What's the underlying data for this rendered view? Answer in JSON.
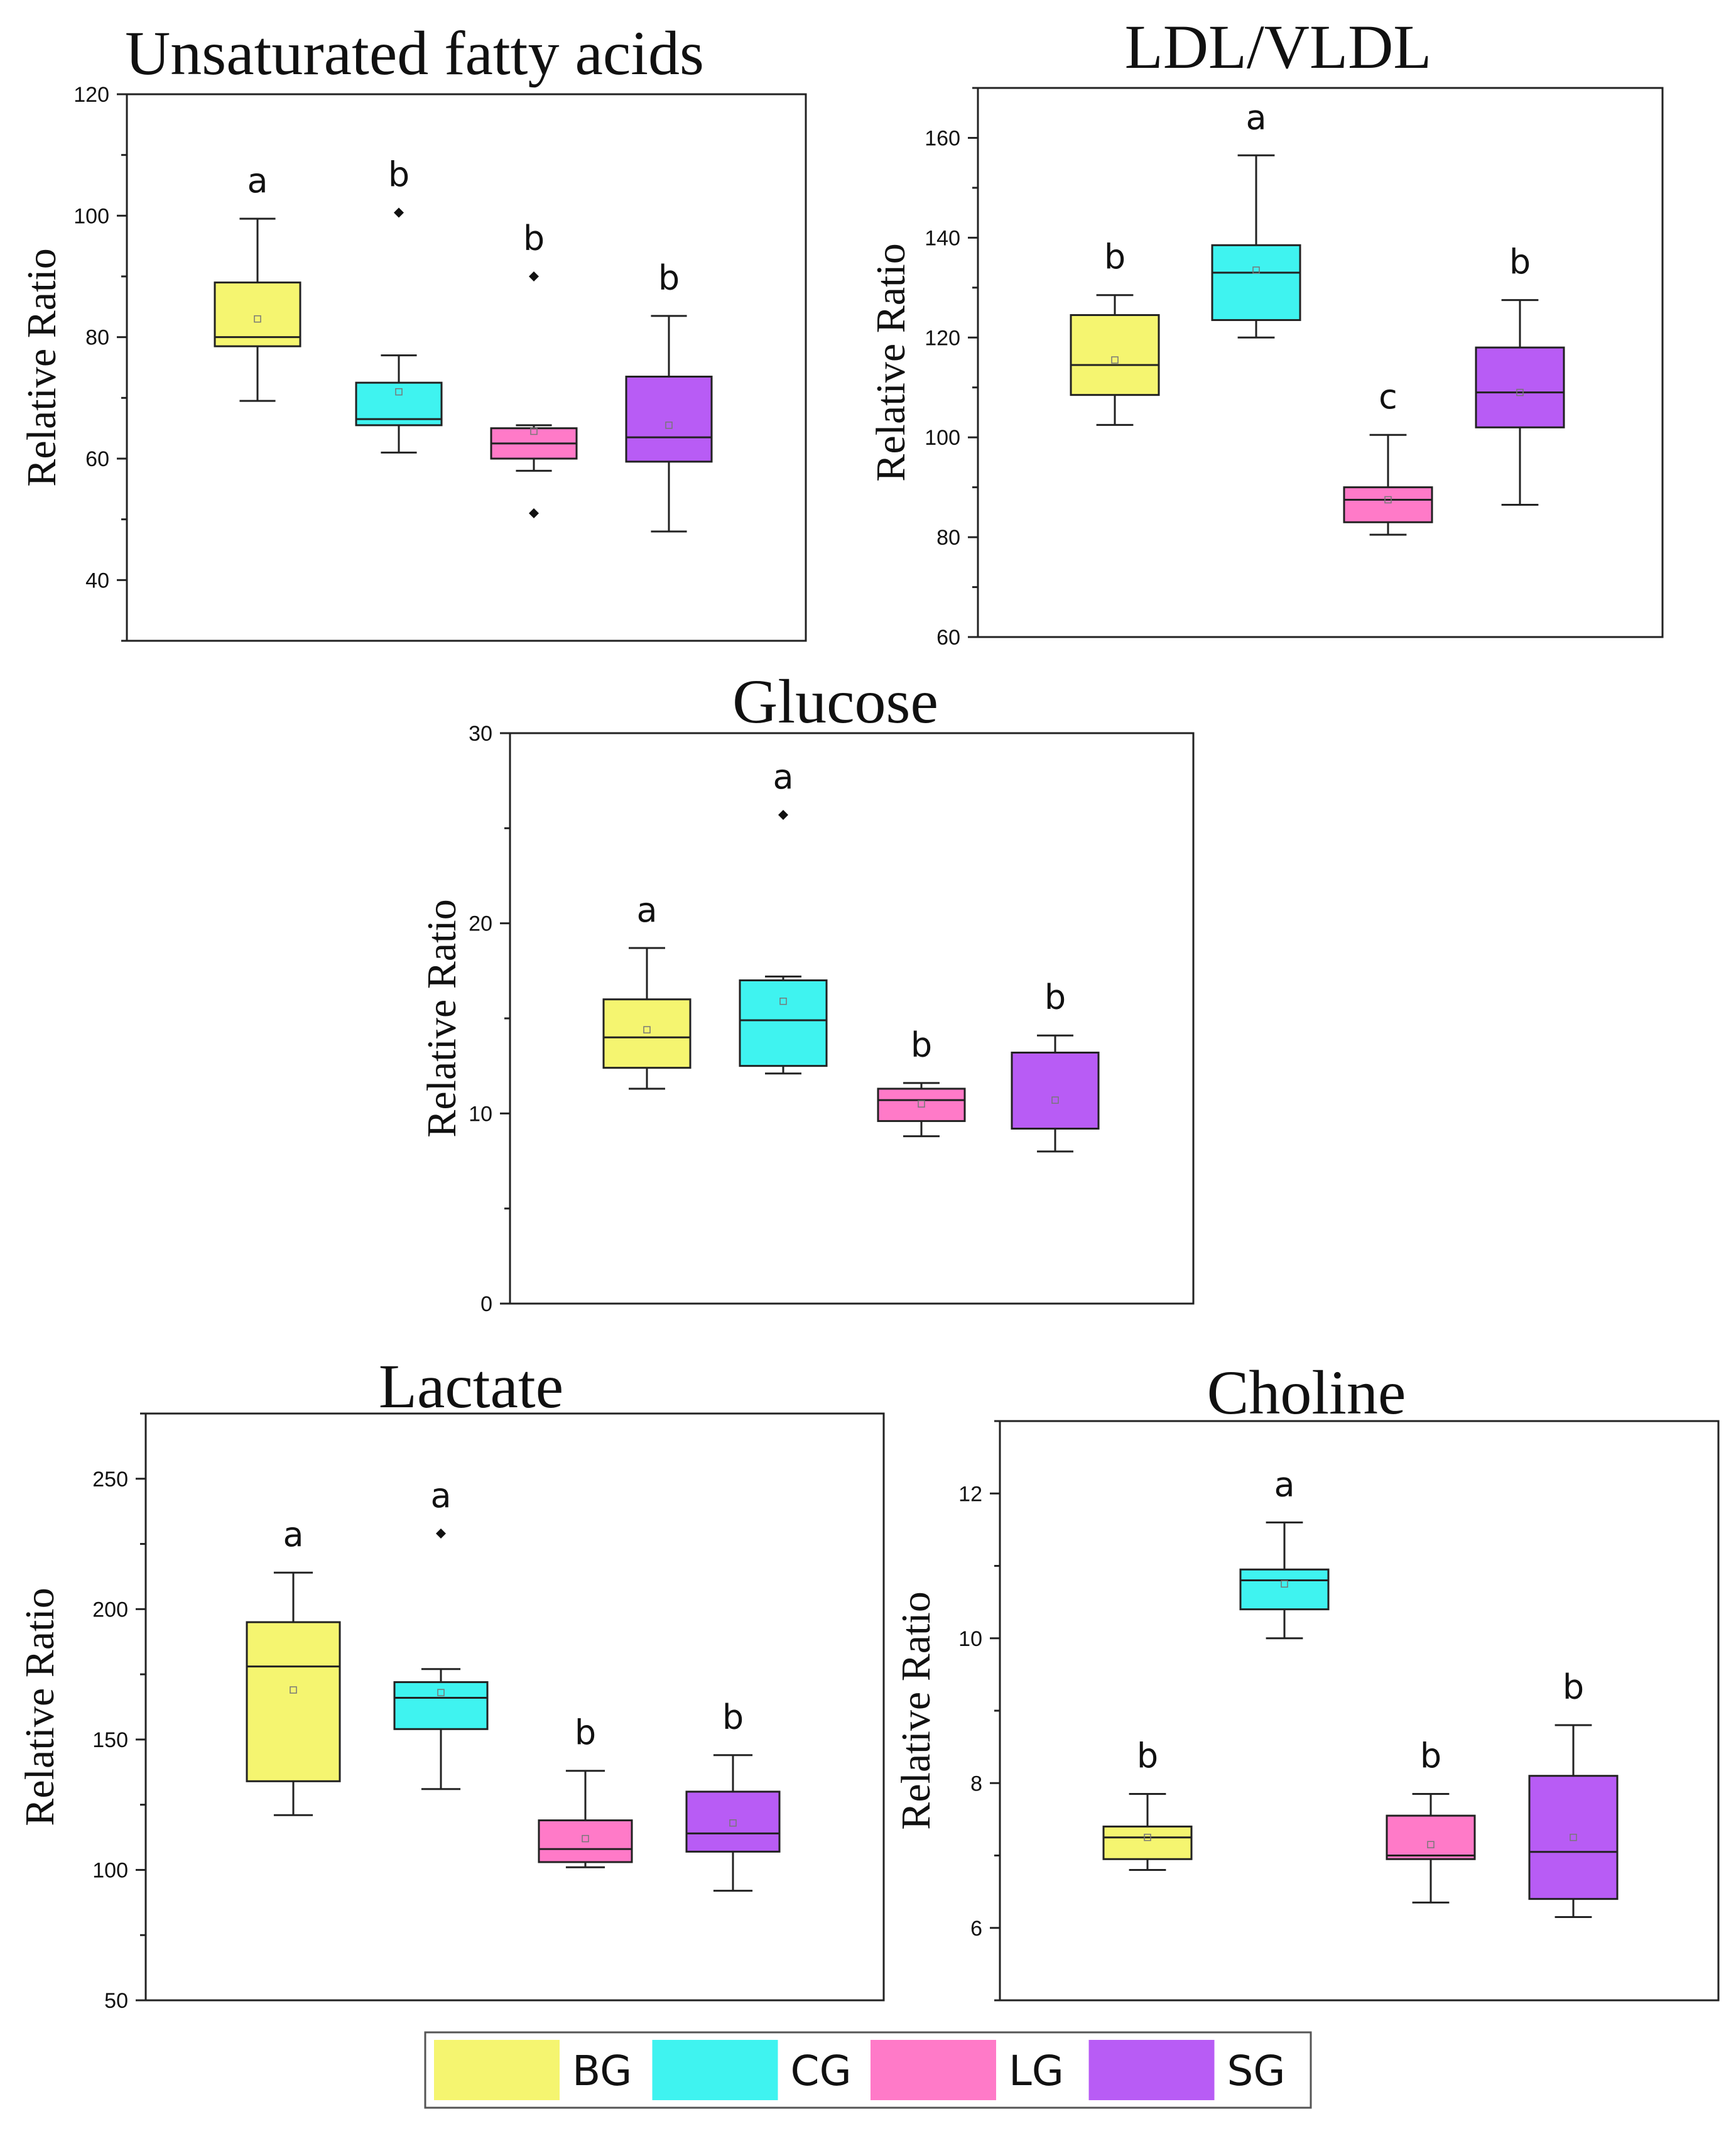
{
  "colors": {
    "BG": "#f5f570",
    "CG": "#3ff3f0",
    "LG": "#ff7ac8",
    "SG": "#b85cf5"
  },
  "legend": [
    "BG",
    "CG",
    "LG",
    "SG"
  ],
  "chart_data": [
    {
      "type": "box",
      "title": "Unsaturated fatty acids",
      "ylabel": "Relative Ratio",
      "ylim": [
        30,
        120
      ],
      "yticks": [
        40,
        60,
        80,
        100,
        120
      ],
      "groups": [
        "BG",
        "CG",
        "LG",
        "SG"
      ],
      "boxes": [
        {
          "group": "BG",
          "whisker_low": 69.5,
          "q1": 78.5,
          "median": 80,
          "q3": 89,
          "whisker_high": 99.5,
          "mean": 83,
          "outliers": [],
          "letter": "a"
        },
        {
          "group": "CG",
          "whisker_low": 61,
          "q1": 65.5,
          "median": 66.5,
          "q3": 72.5,
          "whisker_high": 77,
          "mean": 71,
          "outliers": [
            100.5
          ],
          "letter": "b"
        },
        {
          "group": "LG",
          "whisker_low": 58,
          "q1": 60,
          "median": 62.5,
          "q3": 65,
          "whisker_high": 65.5,
          "mean": 64.5,
          "outliers": [
            90,
            51
          ],
          "letter": "b"
        },
        {
          "group": "SG",
          "whisker_low": 48,
          "q1": 59.5,
          "median": 63.5,
          "q3": 73.5,
          "whisker_high": 83.5,
          "mean": 65.5,
          "outliers": [],
          "letter": "b"
        }
      ]
    },
    {
      "type": "box",
      "title": "LDL/VLDL",
      "ylabel": "Relative Ratio",
      "ylim": [
        60,
        170
      ],
      "yticks": [
        60,
        80,
        100,
        120,
        140,
        160
      ],
      "groups": [
        "BG",
        "CG",
        "LG",
        "SG"
      ],
      "boxes": [
        {
          "group": "BG",
          "whisker_low": 102.5,
          "q1": 108.5,
          "median": 114.5,
          "q3": 124.5,
          "whisker_high": 128.5,
          "mean": 115.5,
          "outliers": [],
          "letter": "b"
        },
        {
          "group": "CG",
          "whisker_low": 120,
          "q1": 123.5,
          "median": 133,
          "q3": 138.5,
          "whisker_high": 156.5,
          "mean": 133.5,
          "outliers": [],
          "letter": "a"
        },
        {
          "group": "LG",
          "whisker_low": 80.5,
          "q1": 83,
          "median": 87.5,
          "q3": 90,
          "whisker_high": 100.5,
          "mean": 87.5,
          "outliers": [],
          "letter": "c"
        },
        {
          "group": "SG",
          "whisker_low": 86.5,
          "q1": 102,
          "median": 109,
          "q3": 118,
          "whisker_high": 127.5,
          "mean": 109,
          "outliers": [],
          "letter": "b"
        }
      ]
    },
    {
      "type": "box",
      "title": "Glucose",
      "ylabel": "Relative Ratio",
      "ylim": [
        0,
        30
      ],
      "yticks": [
        0,
        10,
        20,
        30
      ],
      "groups": [
        "BG",
        "CG",
        "LG",
        "SG"
      ],
      "boxes": [
        {
          "group": "BG",
          "whisker_low": 11.3,
          "q1": 12.4,
          "median": 14,
          "q3": 16,
          "whisker_high": 18.7,
          "mean": 14.4,
          "outliers": [],
          "letter": "a"
        },
        {
          "group": "CG",
          "whisker_low": 12.1,
          "q1": 12.5,
          "median": 14.9,
          "q3": 17,
          "whisker_high": 17.2,
          "mean": 15.9,
          "outliers": [
            25.7
          ],
          "letter": "a"
        },
        {
          "group": "LG",
          "whisker_low": 8.8,
          "q1": 9.6,
          "median": 10.7,
          "q3": 11.3,
          "whisker_high": 11.6,
          "mean": 10.5,
          "outliers": [],
          "letter": "b"
        },
        {
          "group": "SG",
          "whisker_low": 8,
          "q1": 9.2,
          "median": 9.2,
          "q3": 13.2,
          "whisker_high": 14.1,
          "mean": 10.7,
          "outliers": [],
          "letter": "b"
        }
      ]
    },
    {
      "type": "box",
      "title": "Lactate",
      "ylabel": "Relative Ratio",
      "ylim": [
        50,
        275
      ],
      "yticks": [
        50,
        100,
        150,
        200,
        250
      ],
      "groups": [
        "BG",
        "CG",
        "LG",
        "SG"
      ],
      "boxes": [
        {
          "group": "BG",
          "whisker_low": 121,
          "q1": 134,
          "median": 178,
          "q3": 195,
          "whisker_high": 214,
          "mean": 169,
          "outliers": [],
          "letter": "a"
        },
        {
          "group": "CG",
          "whisker_low": 131,
          "q1": 154,
          "median": 166,
          "q3": 172,
          "whisker_high": 177,
          "mean": 168,
          "outliers": [
            229
          ],
          "letter": "a"
        },
        {
          "group": "LG",
          "whisker_low": 101,
          "q1": 103,
          "median": 108,
          "q3": 119,
          "whisker_high": 138,
          "mean": 112,
          "outliers": [],
          "letter": "b"
        },
        {
          "group": "SG",
          "whisker_low": 92,
          "q1": 107,
          "median": 114,
          "q3": 130,
          "whisker_high": 144,
          "mean": 118,
          "outliers": [],
          "letter": "b"
        }
      ]
    },
    {
      "type": "box",
      "title": "Choline",
      "ylabel": "Relative Ratio",
      "ylim": [
        5,
        13
      ],
      "yticks": [
        6,
        8,
        10,
        12
      ],
      "groups": [
        "BG",
        "CG",
        "LG",
        "SG"
      ],
      "boxes": [
        {
          "group": "BG",
          "whisker_low": 6.8,
          "q1": 6.95,
          "median": 7.25,
          "q3": 7.4,
          "whisker_high": 7.85,
          "mean": 7.25,
          "outliers": [],
          "letter": "b"
        },
        {
          "group": "CG",
          "whisker_low": 10,
          "q1": 10.4,
          "median": 10.8,
          "q3": 10.95,
          "whisker_high": 11.6,
          "mean": 10.75,
          "outliers": [],
          "letter": "a"
        },
        {
          "group": "LG",
          "whisker_low": 6.35,
          "q1": 6.95,
          "median": 7,
          "q3": 7.55,
          "whisker_high": 7.85,
          "mean": 7.15,
          "outliers": [],
          "letter": "b"
        },
        {
          "group": "SG",
          "whisker_low": 6.15,
          "q1": 6.4,
          "median": 7.05,
          "q3": 8.1,
          "whisker_high": 8.8,
          "mean": 7.25,
          "outliers": [],
          "letter": "b"
        }
      ]
    }
  ]
}
